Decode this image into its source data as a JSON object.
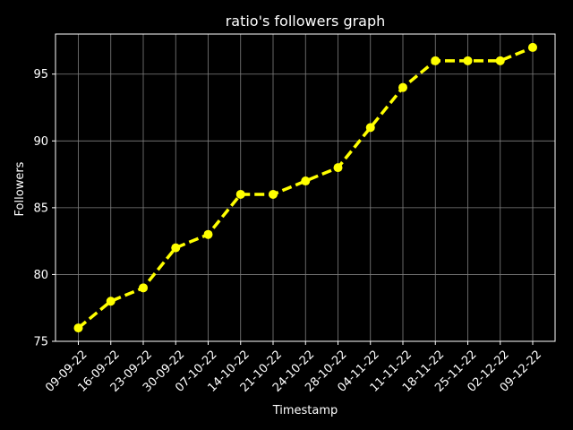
{
  "chart_data": {
    "type": "line",
    "title": "ratio's followers graph",
    "xlabel": "Timestamp",
    "ylabel": "Followers",
    "categories": [
      "09-09-22",
      "16-09-22",
      "23-09-22",
      "30-09-22",
      "07-10-22",
      "14-10-22",
      "21-10-22",
      "24-10-22",
      "28-10-22",
      "04-11-22",
      "11-11-22",
      "18-11-22",
      "25-11-22",
      "02-12-22",
      "09-12-22"
    ],
    "values": [
      76,
      78,
      79,
      82,
      83,
      86,
      86,
      87,
      88,
      91,
      94,
      96,
      96,
      96,
      97
    ],
    "ylim": [
      75,
      98
    ],
    "yticks": [
      75,
      80,
      85,
      90,
      95
    ],
    "grid": true,
    "line_style": "dashed",
    "marker": "circle",
    "colors": {
      "background": "#000000",
      "line": "#ffff00",
      "text": "#ffffff",
      "grid": "#808080",
      "axes": "#ffffff"
    }
  }
}
